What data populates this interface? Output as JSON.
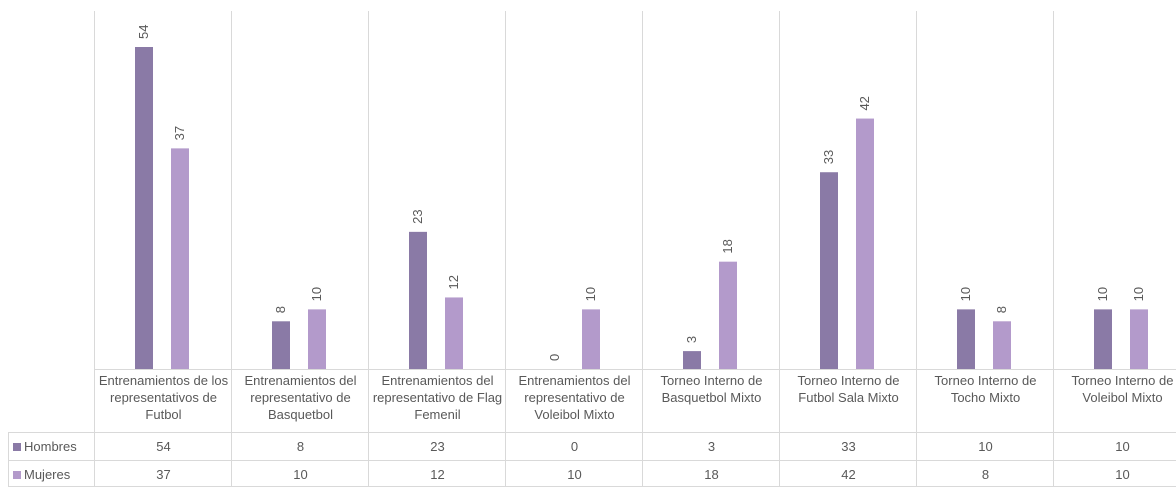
{
  "chart_data": {
    "type": "bar",
    "categories": [
      "Entrenamientos de los representativos de Futbol",
      "Entrenamientos del representativo de Basquetbol",
      "Entrenamientos del representativo de Flag Femenil",
      "Entrenamientos del representativo de Voleibol Mixto",
      "Torneo Interno de Basquetbol Mixto",
      "Torneo Interno de Futbol Sala Mixto",
      "Torneo Interno de Tocho Mixto",
      "Torneo Interno de Voleibol Mixto"
    ],
    "series": [
      {
        "name": "Hombres",
        "values": [
          54,
          8,
          23,
          0,
          3,
          33,
          10,
          10
        ],
        "color": "#8a7aa6"
      },
      {
        "name": "Mujeres",
        "values": [
          37,
          10,
          12,
          10,
          18,
          42,
          8,
          10
        ],
        "color": "#b39acb"
      }
    ],
    "ylim": [
      0,
      60
    ],
    "grid": false,
    "legend": "data-table",
    "colors": {
      "axis": "#d9d9d9",
      "text": "#595959"
    }
  }
}
